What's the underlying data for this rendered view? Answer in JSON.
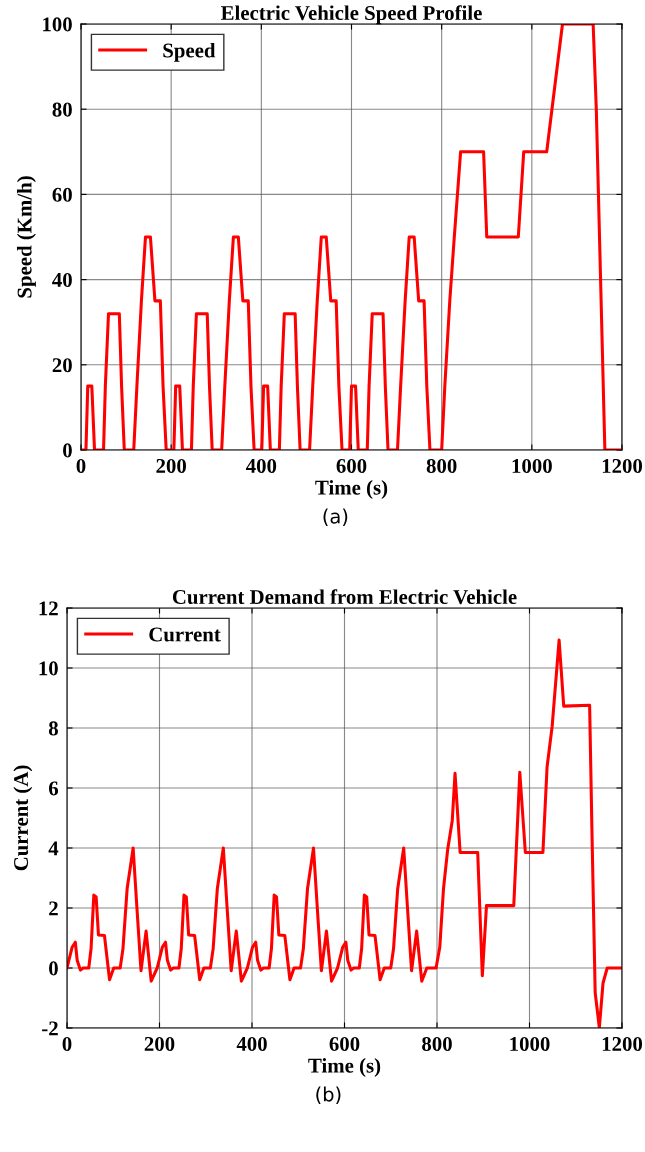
{
  "chart_data": [
    {
      "type": "line",
      "title": "Electric Vehicle Speed Profile",
      "xlabel": "Time (s)",
      "ylabel": "Speed (Km/h)",
      "xlim": [
        0,
        1200
      ],
      "ylim": [
        0,
        100
      ],
      "xticks": [
        0,
        200,
        400,
        600,
        800,
        1000,
        1200
      ],
      "yticks": [
        0,
        20,
        40,
        60,
        80,
        100
      ],
      "grid": true,
      "legend": "top left",
      "line_style": "solid",
      "marker": "none",
      "annotations": [
        "(a)"
      ],
      "series": [
        {
          "name": "Speed",
          "color": "#ff0000",
          "x": [
            0,
            11,
            15,
            24,
            30,
            50,
            54,
            61,
            85,
            90,
            96,
            117,
            124,
            134,
            143,
            154,
            164,
            176,
            182,
            189,
            195,
            206,
            210,
            219,
            225,
            245,
            249,
            256,
            280,
            285,
            291,
            312,
            319,
            329,
            338,
            349,
            359,
            371,
            377,
            384,
            390,
            401,
            405,
            414,
            420,
            440,
            444,
            451,
            475,
            480,
            486,
            507,
            514,
            524,
            533,
            544,
            554,
            566,
            572,
            579,
            585,
            596,
            600,
            609,
            615,
            635,
            639,
            646,
            670,
            675,
            681,
            702,
            709,
            719,
            728,
            739,
            749,
            761,
            767,
            774,
            800,
            807,
            818,
            828,
            842,
            893,
            900,
            970,
            982,
            1033,
            1068,
            1136,
            1143,
            1162,
            1200
          ],
          "values": [
            0,
            0,
            15,
            15,
            0,
            0,
            15,
            32,
            32,
            15,
            0,
            0,
            15,
            35,
            50,
            50,
            35,
            35,
            15,
            0,
            0,
            0,
            15,
            15,
            0,
            0,
            15,
            32,
            32,
            15,
            0,
            0,
            15,
            35,
            50,
            50,
            35,
            35,
            15,
            0,
            0,
            0,
            15,
            15,
            0,
            0,
            15,
            32,
            32,
            15,
            0,
            0,
            15,
            35,
            50,
            50,
            35,
            35,
            15,
            0,
            0,
            0,
            15,
            15,
            0,
            0,
            15,
            32,
            32,
            15,
            0,
            0,
            15,
            35,
            50,
            50,
            35,
            35,
            15,
            0,
            0,
            15,
            35,
            50,
            70,
            70,
            50,
            50,
            70,
            70,
            100,
            100,
            80,
            0,
            0
          ]
        }
      ]
    },
    {
      "type": "line",
      "title": "Current Demand from Electric Vehicle",
      "xlabel": "Time (s)",
      "ylabel": "Current (A)",
      "xlim": [
        0,
        1200
      ],
      "ylim": [
        -2,
        12
      ],
      "xticks": [
        0,
        200,
        400,
        600,
        800,
        1000,
        1200
      ],
      "yticks": [
        {
          "value": -2,
          "label": "-2"
        },
        0,
        2,
        4,
        6,
        8,
        10,
        12
      ],
      "grid": true,
      "legend": "top left",
      "line_style": "solid",
      "marker": "none",
      "annotations": [
        "(b)"
      ],
      "series": [
        {
          "name": "Current",
          "color": "#ff0000",
          "x": [
            0,
            11,
            18,
            22,
            29,
            35,
            47,
            52,
            58,
            63,
            68,
            81,
            92,
            101,
            115,
            121,
            130,
            143,
            151,
            160,
            171,
            182,
            195,
            206,
            213,
            217,
            224,
            230,
            242,
            247,
            253,
            258,
            263,
            276,
            287,
            296,
            310,
            316,
            325,
            338,
            346,
            355,
            366,
            377,
            390,
            401,
            408,
            412,
            419,
            425,
            437,
            442,
            448,
            453,
            458,
            471,
            482,
            491,
            505,
            511,
            520,
            533,
            541,
            550,
            561,
            572,
            585,
            596,
            603,
            607,
            614,
            620,
            632,
            637,
            643,
            648,
            653,
            666,
            677,
            686,
            700,
            706,
            715,
            728,
            736,
            745,
            756,
            767,
            778,
            798,
            806,
            814,
            823,
            833,
            839,
            850,
            888,
            898,
            907,
            966,
            979,
            991,
            1029,
            1038,
            1049,
            1064,
            1074,
            1130,
            1135,
            1142,
            1151,
            1159,
            1168,
            1200
          ],
          "values": [
            0,
            0.69,
            0.86,
            0.26,
            -0.07,
            0,
            0,
            0.64,
            2.43,
            2.37,
            1.1,
            1.08,
            -0.39,
            0,
            0,
            0.64,
            2.64,
            4.0,
            2.05,
            -0.09,
            1.23,
            -0.44,
            0,
            0.69,
            0.86,
            0.26,
            -0.07,
            0,
            0,
            0.64,
            2.43,
            2.37,
            1.1,
            1.08,
            -0.39,
            0,
            0,
            0.64,
            2.64,
            4.0,
            2.05,
            -0.09,
            1.23,
            -0.44,
            0,
            0.69,
            0.86,
            0.26,
            -0.07,
            0,
            0,
            0.64,
            2.43,
            2.37,
            1.1,
            1.08,
            -0.39,
            0,
            0,
            0.64,
            2.64,
            4.0,
            2.05,
            -0.09,
            1.23,
            -0.44,
            0,
            0.69,
            0.86,
            0.26,
            -0.07,
            0,
            0,
            0.64,
            2.43,
            2.37,
            1.1,
            1.08,
            -0.39,
            0,
            0,
            0.64,
            2.64,
            4.0,
            2.05,
            -0.09,
            1.23,
            -0.44,
            0,
            0,
            0.69,
            2.64,
            3.94,
            4.92,
            6.49,
            3.85,
            3.85,
            -0.26,
            2.08,
            2.08,
            6.52,
            3.85,
            3.85,
            6.7,
            8.06,
            10.93,
            8.73,
            8.76,
            4.59,
            -0.82,
            -1.99,
            -0.5,
            0,
            0
          ]
        }
      ]
    }
  ]
}
